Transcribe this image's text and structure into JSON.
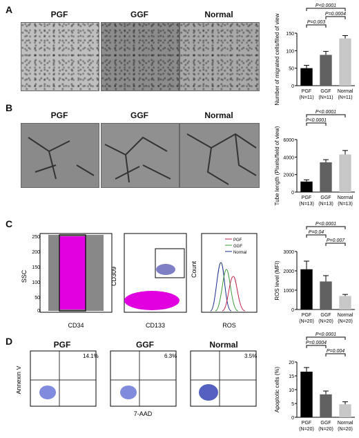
{
  "panels": {
    "A": {
      "letter": "A",
      "groups": [
        "PGF",
        "GGF",
        "Normal"
      ]
    },
    "B": {
      "letter": "B",
      "groups": [
        "PGF",
        "GGF",
        "Normal"
      ]
    },
    "C": {
      "letter": "C"
    },
    "D": {
      "letter": "D",
      "groups": [
        "PGF",
        "GGF",
        "Normal"
      ],
      "percents": [
        "14.1%",
        "6.3%",
        "3.5%"
      ],
      "xlabel": "7-AAD",
      "ylabel": "Annexin V"
    }
  },
  "flow_c": {
    "plot1": {
      "ylabel": "SSC",
      "xlabel": "CD34",
      "yticks": [
        "250",
        "200",
        "150",
        "100",
        "50",
        "0"
      ]
    },
    "plot2": {
      "ylabel": "CD309",
      "xlabel": "CD133"
    },
    "plot3": {
      "ylabel": "Count",
      "xlabel": "ROS",
      "legend": [
        "PGF",
        "GGF",
        "Normal"
      ],
      "legend_colors": [
        "#c0204a",
        "#3a9a3a",
        "#1a2a8a"
      ]
    }
  },
  "chart_data": [
    {
      "type": "bar",
      "panel": "A",
      "categories": [
        "PGF\n(N=11)",
        "GGF\n(N=11)",
        "Normal\n(N=11)"
      ],
      "values": [
        50,
        88,
        135
      ],
      "errors": [
        8,
        10,
        8
      ],
      "ylabel": "Number of migrated cells/filed of view",
      "ylim": [
        0,
        150
      ],
      "yticks": [
        0,
        50,
        100,
        150
      ],
      "colors": [
        "#000000",
        "#606060",
        "#c8c8c8"
      ],
      "annotations": [
        {
          "from": 0,
          "to": 2,
          "text": "P<0.0001"
        },
        {
          "from": 1,
          "to": 2,
          "text": "P=0.0004"
        },
        {
          "from": 0,
          "to": 1,
          "text": "P=0.003"
        }
      ]
    },
    {
      "type": "bar",
      "panel": "B",
      "categories": [
        "PGF\n(N=13)",
        "GGF\n(N=13)",
        "Normal\n(N=13)"
      ],
      "values": [
        1200,
        3400,
        4300
      ],
      "errors": [
        200,
        300,
        450
      ],
      "ylabel": "Tube length (Pixels/field of view)",
      "ylim": [
        0,
        6000
      ],
      "yticks": [
        0,
        2000,
        4000,
        6000
      ],
      "colors": [
        "#000000",
        "#606060",
        "#c8c8c8"
      ],
      "annotations": [
        {
          "from": 0,
          "to": 2,
          "text": "P<0.0001"
        },
        {
          "from": 0,
          "to": 1,
          "text": "P<0.0001"
        }
      ]
    },
    {
      "type": "bar",
      "panel": "C",
      "categories": [
        "PGF\n(N=20)",
        "GGF\n(N=20)",
        "Normal\n(N=20)"
      ],
      "values": [
        2080,
        1450,
        700
      ],
      "errors": [
        420,
        300,
        80
      ],
      "ylabel": "ROS level (MFI)",
      "ylim": [
        0,
        3000
      ],
      "yticks": [
        0,
        1000,
        2000,
        3000
      ],
      "colors": [
        "#000000",
        "#606060",
        "#c8c8c8"
      ],
      "annotations": [
        {
          "from": 0,
          "to": 2,
          "text": "P<0.0001"
        },
        {
          "from": 0,
          "to": 1,
          "text": "P=0.04"
        },
        {
          "from": 1,
          "to": 2,
          "text": "P=0.007"
        }
      ]
    },
    {
      "type": "bar",
      "panel": "D",
      "categories": [
        "PGF\n(N=20)",
        "GGF\n(N=20)",
        "Normal\n(N=20)"
      ],
      "values": [
        16.5,
        8.3,
        4.7
      ],
      "errors": [
        1.5,
        1.2,
        0.9
      ],
      "ylabel": "Apoptotic cells (%)",
      "ylim": [
        0,
        20
      ],
      "yticks": [
        0,
        5,
        10,
        15,
        20
      ],
      "colors": [
        "#000000",
        "#606060",
        "#c8c8c8"
      ],
      "annotations": [
        {
          "from": 0,
          "to": 2,
          "text": "P<0.0001"
        },
        {
          "from": 0,
          "to": 1,
          "text": "P=0.0004"
        },
        {
          "from": 1,
          "to": 2,
          "text": "P=0.004"
        }
      ]
    }
  ]
}
